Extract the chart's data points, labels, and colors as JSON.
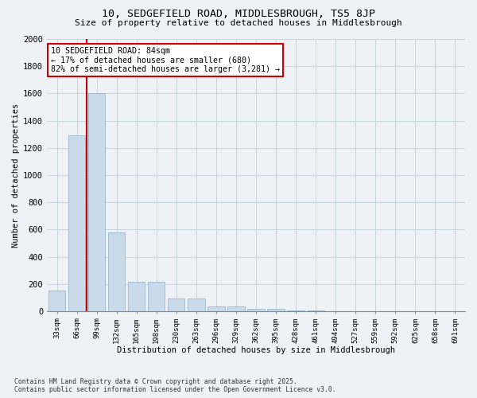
{
  "title_line1": "10, SEDGEFIELD ROAD, MIDDLESBROUGH, TS5 8JP",
  "title_line2": "Size of property relative to detached houses in Middlesbrough",
  "xlabel": "Distribution of detached houses by size in Middlesbrough",
  "ylabel": "Number of detached properties",
  "categories": [
    "33sqm",
    "66sqm",
    "99sqm",
    "132sqm",
    "165sqm",
    "198sqm",
    "230sqm",
    "263sqm",
    "296sqm",
    "329sqm",
    "362sqm",
    "395sqm",
    "428sqm",
    "461sqm",
    "494sqm",
    "527sqm",
    "559sqm",
    "592sqm",
    "625sqm",
    "658sqm",
    "691sqm"
  ],
  "values": [
    150,
    1290,
    1600,
    580,
    215,
    215,
    95,
    95,
    35,
    35,
    15,
    15,
    5,
    5,
    2,
    2,
    1,
    1,
    0,
    0,
    0
  ],
  "bar_color": "#c9daea",
  "bar_edge_color": "#9ab8cc",
  "grid_color": "#c8d4dc",
  "vline_x": 1.5,
  "vline_color": "#cc0000",
  "annotation_text": "10 SEDGEFIELD ROAD: 84sqm\n← 17% of detached houses are smaller (680)\n82% of semi-detached houses are larger (3,281) →",
  "annotation_box_color": "#ffffff",
  "annotation_box_edge": "#cc0000",
  "ylim": [
    0,
    2000
  ],
  "yticks": [
    0,
    200,
    400,
    600,
    800,
    1000,
    1200,
    1400,
    1600,
    1800,
    2000
  ],
  "footer_line1": "Contains HM Land Registry data © Crown copyright and database right 2025.",
  "footer_line2": "Contains public sector information licensed under the Open Government Licence v3.0.",
  "bg_color": "#eef2f6"
}
